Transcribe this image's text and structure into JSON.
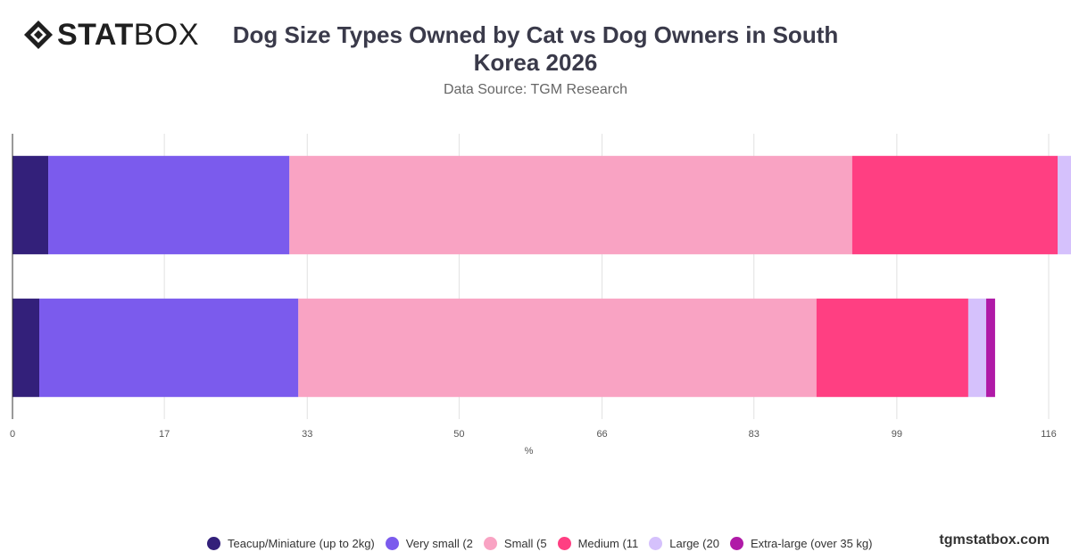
{
  "brand": {
    "logo_bold": "STAT",
    "logo_light": "BOX",
    "footer": "tgmstatbox.com"
  },
  "chart_data": {
    "type": "bar",
    "orientation": "horizontal",
    "stacked": true,
    "title": "Dog Size Types Owned by Cat vs Dog Owners in South Korea 2026",
    "subtitle": "Data Source: TGM Research",
    "xlabel": "%",
    "xlim": [
      0,
      116
    ],
    "xticks": [
      "0",
      "17",
      "33",
      "50",
      "66",
      "83",
      "99",
      "116"
    ],
    "categories": [
      "",
      ""
    ],
    "grid": true,
    "legend_position": "bottom",
    "series": [
      {
        "name": "Teacup/Miniature (up to 2kg)",
        "color": "#33207a",
        "values": [
          4,
          3
        ]
      },
      {
        "name": "Very small (2",
        "color": "#7b5bed",
        "values": [
          27,
          29
        ]
      },
      {
        "name": "Small (5",
        "color": "#f9a3c3",
        "values": [
          63,
          58
        ]
      },
      {
        "name": "Medium (11",
        "color": "#ff3f82",
        "values": [
          23,
          17
        ]
      },
      {
        "name": "Large (20",
        "color": "#d5c1fc",
        "values": [
          4,
          2
        ]
      },
      {
        "name": "Extra-large (over 35 kg)",
        "color": "#b01aa7",
        "values": [
          0,
          1
        ]
      }
    ]
  }
}
